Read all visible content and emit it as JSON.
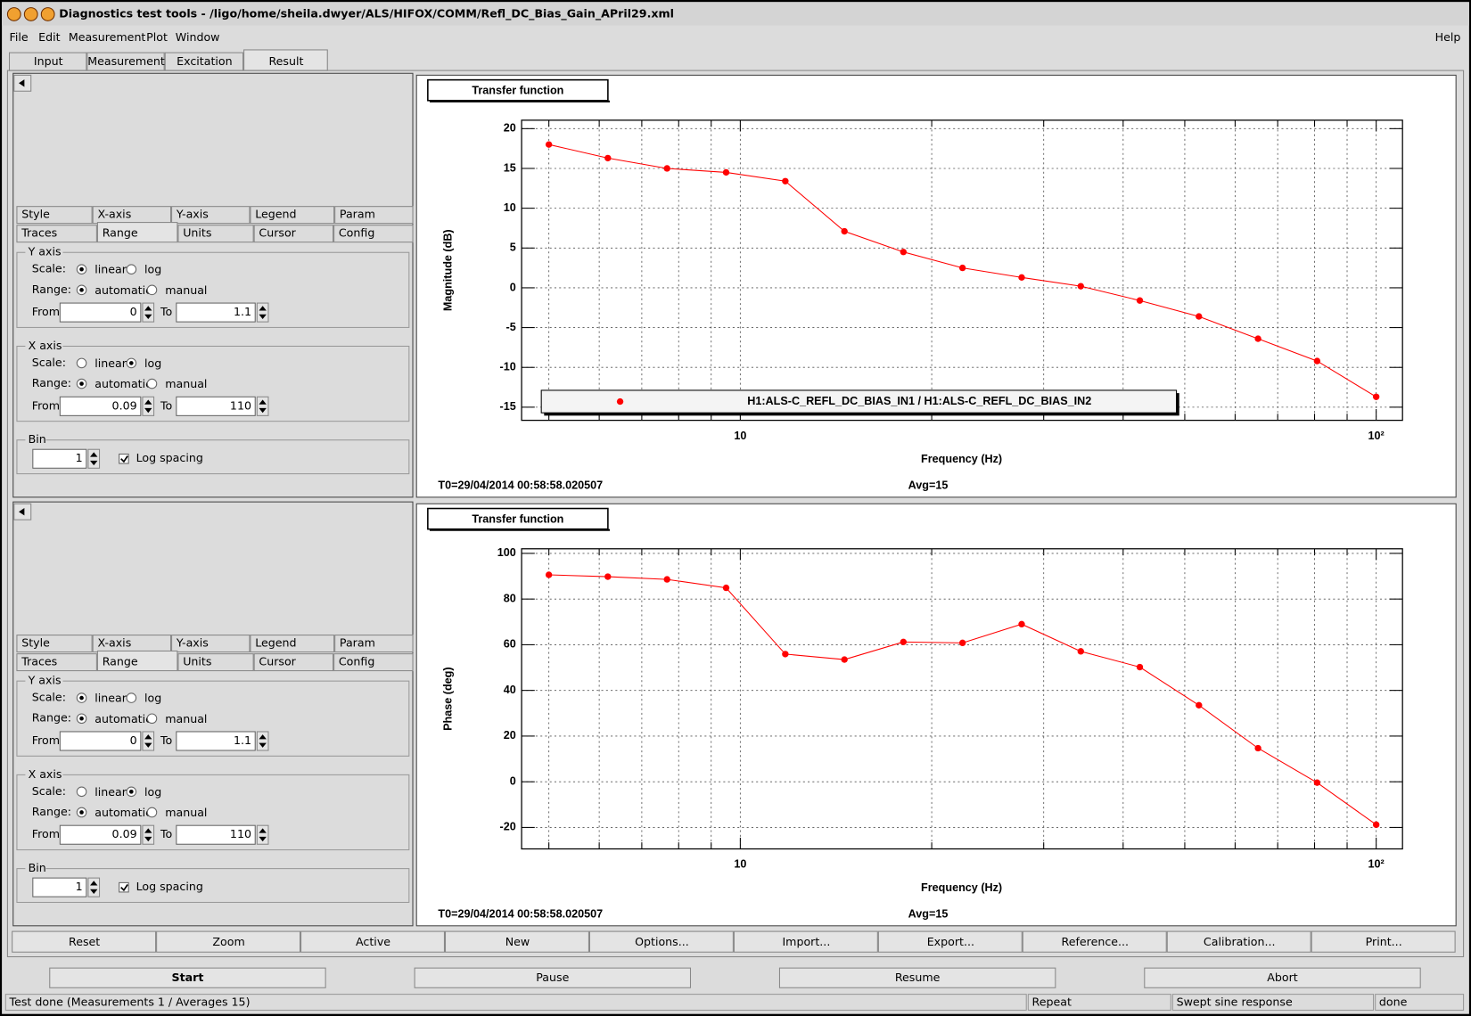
{
  "window_title": "Diagnostics test tools - /ligo/home/sheila.dwyer/ALS/HIFOX/COMM/Refl_DC_Bias_Gain_APril29.xml",
  "menu": [
    "File",
    "Edit",
    "Measurement",
    "Plot",
    "Window"
  ],
  "help_menu": "Help",
  "tabs": [
    "Input",
    "Measurement",
    "Excitation",
    "Result"
  ],
  "active_tab": 3,
  "panels": [
    {
      "tabs_row1": [
        "Style",
        "X-axis",
        "Y-axis",
        "Legend",
        "Param"
      ],
      "tabs_row2": [
        "Traces",
        "Range",
        "Units",
        "Cursor",
        "Config"
      ],
      "active_row2": 1,
      "y_axis": {
        "title": "Y axis",
        "scale_label": "Scale:",
        "scale_options": [
          "linear",
          "log"
        ],
        "scale_selected": 0,
        "range_label": "Range:",
        "range_options": [
          "automatic",
          "manual"
        ],
        "range_selected": 0,
        "from_label": "From",
        "from": "0",
        "to_label": "To",
        "to": "1.1"
      },
      "x_axis": {
        "title": "X axis",
        "scale_label": "Scale:",
        "scale_options": [
          "linear",
          "log"
        ],
        "scale_selected": 1,
        "range_label": "Range:",
        "range_options": [
          "automatic",
          "manual"
        ],
        "range_selected": 0,
        "from_label": "From",
        "from": "0.09",
        "to_label": "To",
        "to": "110"
      },
      "bin": {
        "title": "Bin",
        "value": "1",
        "log_spacing_label": "Log spacing",
        "log_spacing": true
      }
    },
    {
      "tabs_row1": [
        "Style",
        "X-axis",
        "Y-axis",
        "Legend",
        "Param"
      ],
      "tabs_row2": [
        "Traces",
        "Range",
        "Units",
        "Cursor",
        "Config"
      ],
      "active_row2": 1,
      "y_axis": {
        "title": "Y axis",
        "scale_label": "Scale:",
        "scale_options": [
          "linear",
          "log"
        ],
        "scale_selected": 0,
        "range_label": "Range:",
        "range_options": [
          "automatic",
          "manual"
        ],
        "range_selected": 0,
        "from_label": "From",
        "from": "0",
        "to_label": "To",
        "to": "1.1"
      },
      "x_axis": {
        "title": "X axis",
        "scale_label": "Scale:",
        "scale_options": [
          "linear",
          "log"
        ],
        "scale_selected": 1,
        "range_label": "Range:",
        "range_options": [
          "automatic",
          "manual"
        ],
        "range_selected": 0,
        "from_label": "From",
        "from": "0.09",
        "to_label": "To",
        "to": "110"
      },
      "bin": {
        "title": "Bin",
        "value": "1",
        "log_spacing_label": "Log spacing",
        "log_spacing": true
      }
    }
  ],
  "buttons": [
    "Reset",
    "Zoom",
    "Active",
    "New",
    "Options...",
    "Import...",
    "Export...",
    "Reference...",
    "Calibration...",
    "Print..."
  ],
  "run_buttons": [
    {
      "label": "Start",
      "enabled": true
    },
    {
      "label": "Pause",
      "enabled": false
    },
    {
      "label": "Resume",
      "enabled": false
    },
    {
      "label": "Abort",
      "enabled": false
    }
  ],
  "status": [
    "Test done (Measurements 1 / Averages 15)",
    "Repeat",
    "Swept sine response",
    "done"
  ],
  "chart_data": [
    {
      "type": "line",
      "title": "Transfer function",
      "xlabel": "Frequency (Hz)",
      "ylabel": "Magnitude (dB)",
      "x": [
        5.0,
        6.19,
        7.67,
        9.5,
        11.77,
        14.58,
        18.05,
        22.36,
        27.7,
        34.31,
        42.49,
        52.63,
        65.19,
        80.74,
        100
      ],
      "xlog": true,
      "xlim": [
        4.53,
        110
      ],
      "xticks": [
        10,
        {
          "value": 100,
          "label": "10²"
        }
      ],
      "xminorticks": [
        5,
        6,
        7,
        8,
        9,
        20,
        30,
        40,
        50,
        60,
        70,
        80,
        90
      ],
      "ylim": [
        -16.65,
        21.06
      ],
      "yticks": [
        -15,
        -10,
        -5,
        0,
        5,
        10,
        15,
        20
      ],
      "grid": true,
      "series": [
        {
          "name": "H1:ALS-C_REFL_DC_BIAS_IN1 / H1:ALS-C_REFL_DC_BIAS_IN2",
          "color": "#ff0000",
          "values": [
            18.0,
            16.3,
            15.0,
            14.5,
            13.4,
            7.1,
            4.5,
            2.5,
            1.3,
            0.2,
            -1.6,
            -3.6,
            -6.4,
            -9.2,
            -13.7
          ]
        }
      ],
      "legend": true,
      "footer_left": "T0=29/04/2014 00:58:58.020507",
      "footer_right": "Avg=15"
    },
    {
      "type": "line",
      "title": "Transfer function",
      "xlabel": "Frequency (Hz)",
      "ylabel": "Phase (deg)",
      "x": [
        5.0,
        6.19,
        7.67,
        9.5,
        11.77,
        14.58,
        18.05,
        22.36,
        27.7,
        34.31,
        42.49,
        52.63,
        65.19,
        80.74,
        100
      ],
      "xlog": true,
      "xlim": [
        4.53,
        110
      ],
      "xticks": [
        10,
        {
          "value": 100,
          "label": "10²"
        }
      ],
      "xminorticks": [
        5,
        6,
        7,
        8,
        9,
        20,
        30,
        40,
        50,
        60,
        70,
        80,
        90
      ],
      "ylim": [
        -29.4,
        102
      ],
      "yticks": [
        -20,
        0,
        20,
        40,
        60,
        80,
        100
      ],
      "grid": true,
      "series": [
        {
          "color": "#ff0000",
          "values": [
            90.6,
            89.8,
            88.6,
            84.9,
            55.9,
            53.5,
            61.2,
            60.8,
            69.0,
            57.1,
            50.2,
            33.5,
            14.7,
            -0.4,
            -18.8
          ]
        }
      ],
      "legend": false,
      "footer_left": "T0=29/04/2014 00:58:58.020507",
      "footer_right": "Avg=15"
    }
  ]
}
